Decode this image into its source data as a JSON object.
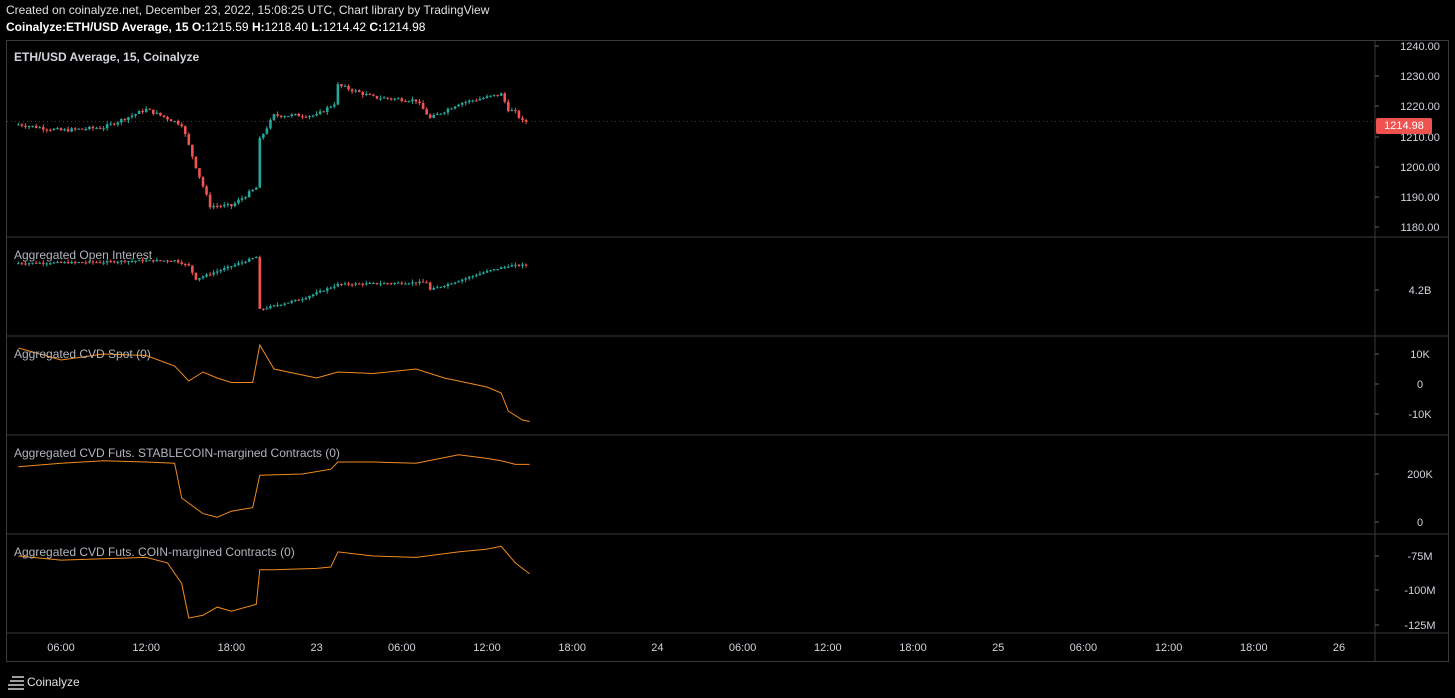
{
  "header": {
    "line1": "Created on coinalyze.net, December 23, 2022, 15:08:25 UTC, Chart library by TradingView",
    "symbol": "Coinalyze:ETH/USD Average, 15",
    "o_label": "O:",
    "o": "1215.59",
    "h_label": "H:",
    "h": "1218.40",
    "l_label": "L:",
    "l": "1214.42",
    "c_label": "C:",
    "c": "1214.98"
  },
  "colors": {
    "up": "#26a69a",
    "down": "#ef5350",
    "cvd_line": "#f28b1e",
    "price_tag": "#ef5350"
  },
  "footer": {
    "brand": "Coinalyze",
    "icon": "menu-lines-icon"
  },
  "chart_data": [
    {
      "type": "candlestick",
      "title": "ETH/USD Average, 15, Coinalyze",
      "y_ticks": [
        "1240.00",
        "1230.00",
        "1220.00",
        "1210.00",
        "1200.00",
        "1190.00",
        "1180.00"
      ],
      "ylim": [
        1180,
        1240
      ],
      "last_price": "1214.98",
      "x": [
        "22 03:00",
        "22 06:00",
        "22 09:00",
        "22 12:00",
        "22 14:30",
        "22 15:30",
        "22 16:30",
        "22 18:00",
        "22 19:45",
        "22 20:00",
        "22 21:00",
        "23 00:00",
        "23 01:15",
        "23 01:30",
        "23 04:00",
        "23 07:00",
        "23 08:00",
        "23 10:00",
        "23 12:00",
        "23 13:00",
        "23 13:30",
        "23 14:00",
        "23 14:30",
        "23 15:00"
      ],
      "values": [
        1214,
        1212,
        1213,
        1219,
        1214,
        1200,
        1187,
        1187,
        1193,
        1209,
        1217,
        1217,
        1221,
        1227,
        1223,
        1222,
        1216,
        1221,
        1223,
        1224,
        1219,
        1218,
        1215,
        1215
      ]
    },
    {
      "type": "candlestick",
      "title": "Aggregated Open Interest",
      "y_ticks": [
        "4.2B"
      ],
      "x": [
        "22 03:00",
        "22 09:00",
        "22 10:30",
        "22 14:00",
        "22 15:00",
        "22 15:30",
        "22 19:45",
        "22 20:00",
        "22 23:00",
        "23 01:30",
        "23 07:45",
        "23 08:00",
        "23 12:00",
        "23 13:30",
        "23 15:00"
      ],
      "values": [
        4.2425,
        4.2435,
        4.2445,
        4.245,
        4.24,
        4.228,
        4.248,
        4.2,
        4.21,
        4.223,
        4.225,
        4.218,
        4.235,
        4.24,
        4.241
      ]
    },
    {
      "type": "line",
      "title": "Aggregated CVD Spot (0)",
      "y_ticks": [
        "10K",
        "0",
        "-10K"
      ],
      "ylim": [
        -10000,
        10000
      ],
      "x": [
        "22 03:00",
        "22 06:00",
        "22 09:00",
        "22 12:00",
        "22 14:00",
        "22 15:00",
        "22 16:00",
        "22 17:00",
        "22 18:00",
        "22 19:30",
        "22 20:00",
        "22 21:00",
        "23 00:00",
        "23 01:30",
        "23 04:00",
        "23 07:00",
        "23 09:00",
        "23 12:00",
        "23 13:00",
        "23 13:30",
        "23 14:30",
        "23 15:00"
      ],
      "values": [
        12000,
        8000,
        10000,
        9500,
        6000,
        1000,
        4000,
        2000,
        500,
        500,
        13000,
        5000,
        2000,
        4000,
        3500,
        5000,
        2000,
        -1000,
        -3000,
        -9000,
        -12000,
        -12500
      ]
    },
    {
      "type": "line",
      "title": "Aggregated CVD Futs. STABLECOIN-margined Contracts (0)",
      "y_ticks": [
        "200K",
        "0"
      ],
      "ylim": [
        0,
        400000
      ],
      "x": [
        "22 03:00",
        "22 06:00",
        "22 09:00",
        "22 12:00",
        "22 14:00",
        "22 14:30",
        "22 16:00",
        "22 17:00",
        "22 18:00",
        "22 19:30",
        "22 20:00",
        "22 23:00",
        "23 01:00",
        "23 01:30",
        "23 04:00",
        "23 07:00",
        "23 10:00",
        "23 12:00",
        "23 13:00",
        "23 14:00",
        "23 15:00"
      ],
      "values": [
        230000,
        245000,
        255000,
        250000,
        245000,
        100000,
        35000,
        20000,
        45000,
        60000,
        195000,
        200000,
        220000,
        250000,
        250000,
        245000,
        280000,
        265000,
        255000,
        240000,
        240000
      ]
    },
    {
      "type": "line",
      "title": "Aggregated CVD Futs. COIN-margined Contracts (0)",
      "y_ticks": [
        "-75M",
        "-100M",
        "-125M"
      ],
      "ylim": [
        -125000000,
        -75000000
      ],
      "x": [
        "22 03:00",
        "22 06:00",
        "22 09:00",
        "22 12:00",
        "22 13:30",
        "22 14:30",
        "22 15:00",
        "22 16:00",
        "22 17:00",
        "22 18:00",
        "22 19:45",
        "22 20:00",
        "22 21:00",
        "23 00:00",
        "23 01:00",
        "23 01:30",
        "23 04:00",
        "23 07:00",
        "23 10:00",
        "23 12:00",
        "23 13:00",
        "23 14:00",
        "23 15:00"
      ],
      "values": [
        -75000000,
        -78000000,
        -77000000,
        -76000000,
        -80000000,
        -95000000,
        -120000000,
        -118000000,
        -112000000,
        -115000000,
        -110000000,
        -85000000,
        -85000000,
        -84000000,
        -83000000,
        -72000000,
        -75000000,
        -76000000,
        -72000000,
        -70000000,
        -68000000,
        -80000000,
        -88000000
      ]
    }
  ],
  "x_axis_ticks": [
    "06:00",
    "12:00",
    "18:00",
    "23",
    "06:00",
    "12:00",
    "18:00",
    "24",
    "06:00",
    "12:00",
    "18:00",
    "25",
    "06:00",
    "12:00",
    "18:00",
    "26"
  ]
}
